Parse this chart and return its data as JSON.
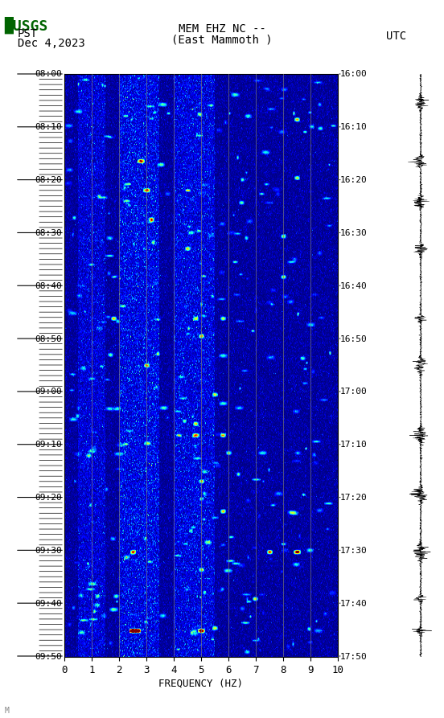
{
  "title_line1": "MEM EHZ NC --",
  "title_line2": "(East Mammoth )",
  "date_label": "Dec 4,2023",
  "left_timezone": "PST",
  "right_timezone": "UTC",
  "pst_labels": [
    "08:00",
    "08:10",
    "08:20",
    "08:30",
    "08:40",
    "08:50",
    "09:00",
    "09:10",
    "09:20",
    "09:30",
    "09:40",
    "09:50"
  ],
  "utc_labels": [
    "16:00",
    "16:10",
    "16:20",
    "16:30",
    "16:40",
    "16:50",
    "17:00",
    "17:10",
    "17:20",
    "17:30",
    "17:40",
    "17:50"
  ],
  "freq_min": 0,
  "freq_max": 10,
  "freq_label": "FREQUENCY (HZ)",
  "freq_ticks": [
    0,
    1,
    2,
    3,
    4,
    5,
    6,
    7,
    8,
    9,
    10
  ],
  "n_time_bins": 660,
  "n_freq_bins": 340,
  "fig_width": 5.52,
  "fig_height": 8.93,
  "usgs_logo_color": "#006400",
  "colormap": "jet",
  "vmax": 0.45,
  "watermark": "M"
}
